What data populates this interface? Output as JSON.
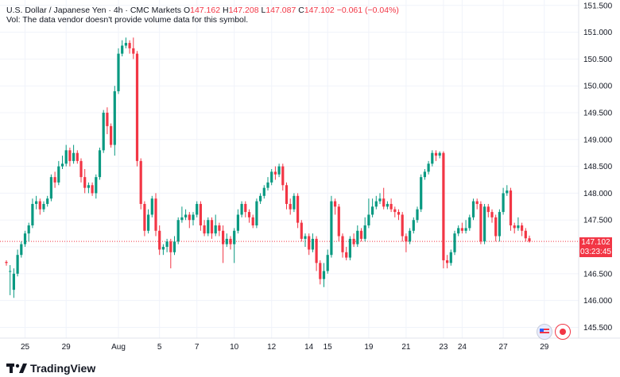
{
  "header": {
    "symbol": "U.S. Dollar / Japanese Yen · 4h · CMC Markets",
    "o_label": "O",
    "o_value": "147.162",
    "h_label": "H",
    "h_value": "147.208",
    "l_label": "L",
    "l_value": "147.087",
    "c_label": "C",
    "c_value": "147.102",
    "change": "−0.061 (−0.04%)",
    "vol_note": "Vol: The data vendor doesn't provide volume data for this symbol."
  },
  "price_tag": {
    "price": "147.102",
    "countdown": "03:23:45"
  },
  "brand": {
    "name": "TradingView"
  },
  "colors": {
    "up": "#089981",
    "down": "#f23645",
    "grid": "#f0f3fa",
    "axis_text": "#131722"
  },
  "chart_data": {
    "type": "candlestick",
    "title": "U.S. Dollar / Japanese Yen · 4h · CMC Markets",
    "ylim": [
      145.3,
      151.6
    ],
    "yticks": [
      "151.500",
      "151.000",
      "150.500",
      "150.000",
      "149.500",
      "149.000",
      "148.500",
      "148.000",
      "147.500",
      "147.000",
      "146.500",
      "146.000",
      "145.500"
    ],
    "xticks": [
      {
        "label": "25",
        "i": 5
      },
      {
        "label": "29",
        "i": 16
      },
      {
        "label": "Aug",
        "i": 30
      },
      {
        "label": "5",
        "i": 41
      },
      {
        "label": "7",
        "i": 51
      },
      {
        "label": "10",
        "i": 61
      },
      {
        "label": "12",
        "i": 71
      },
      {
        "label": "14",
        "i": 81
      },
      {
        "label": "15",
        "i": 86
      },
      {
        "label": "19",
        "i": 97
      },
      {
        "label": "21",
        "i": 107
      },
      {
        "label": "23",
        "i": 117
      },
      {
        "label": "24",
        "i": 122
      },
      {
        "label": "27",
        "i": 133
      },
      {
        "label": "29",
        "i": 144
      }
    ],
    "last_price": 147.102,
    "grid": true,
    "candles": [
      [
        146.72,
        146.7,
        146.65,
        146.75
      ],
      [
        146.55,
        146.55,
        146.1,
        146.66
      ],
      [
        146.2,
        146.5,
        146.05,
        146.6
      ],
      [
        146.5,
        146.85,
        146.45,
        146.95
      ],
      [
        146.85,
        147.05,
        146.8,
        147.1
      ],
      [
        147.05,
        147.25,
        147.0,
        147.3
      ],
      [
        147.25,
        147.4,
        147.1,
        147.45
      ],
      [
        147.4,
        147.8,
        147.35,
        147.9
      ],
      [
        147.8,
        147.85,
        147.7,
        147.95
      ],
      [
        147.85,
        147.7,
        147.6,
        147.9
      ],
      [
        147.7,
        147.8,
        147.65,
        147.85
      ],
      [
        147.8,
        147.9,
        147.75,
        147.95
      ],
      [
        147.9,
        148.3,
        147.85,
        148.35
      ],
      [
        148.3,
        148.2,
        148.1,
        148.4
      ],
      [
        148.2,
        148.5,
        148.15,
        148.6
      ],
      [
        148.5,
        148.55,
        148.45,
        148.7
      ],
      [
        148.55,
        148.8,
        148.5,
        148.9
      ],
      [
        148.8,
        148.6,
        148.5,
        148.85
      ],
      [
        148.6,
        148.75,
        148.55,
        148.9
      ],
      [
        148.75,
        148.6,
        148.55,
        148.8
      ],
      [
        148.6,
        148.3,
        148.2,
        148.65
      ],
      [
        148.3,
        148.1,
        148.0,
        148.45
      ],
      [
        148.1,
        148.15,
        148.0,
        148.2
      ],
      [
        148.15,
        148.0,
        147.95,
        148.2
      ],
      [
        148.0,
        148.3,
        147.9,
        148.35
      ],
      [
        148.3,
        148.8,
        148.25,
        148.85
      ],
      [
        148.8,
        149.5,
        148.75,
        149.55
      ],
      [
        149.5,
        149.25,
        149.1,
        149.6
      ],
      [
        149.25,
        148.9,
        148.85,
        149.3
      ],
      [
        148.9,
        149.9,
        148.7,
        150.0
      ],
      [
        149.9,
        150.6,
        149.85,
        150.7
      ],
      [
        150.6,
        150.75,
        150.55,
        150.85
      ],
      [
        150.75,
        150.8,
        150.7,
        150.9
      ],
      [
        150.8,
        150.7,
        150.6,
        150.85
      ],
      [
        150.7,
        150.6,
        150.5,
        150.9
      ],
      [
        150.6,
        148.6,
        148.5,
        150.65
      ],
      [
        148.6,
        147.8,
        147.7,
        148.65
      ],
      [
        147.8,
        147.3,
        147.2,
        147.85
      ],
      [
        147.3,
        147.6,
        147.25,
        147.7
      ],
      [
        147.6,
        147.9,
        147.55,
        147.95
      ],
      [
        147.9,
        147.3,
        147.2,
        148.0
      ],
      [
        147.3,
        146.95,
        146.85,
        147.4
      ],
      [
        146.95,
        147.0,
        146.85,
        147.05
      ],
      [
        147.0,
        147.1,
        146.9,
        147.15
      ],
      [
        147.1,
        146.9,
        146.6,
        147.15
      ],
      [
        146.9,
        147.1,
        146.85,
        147.2
      ],
      [
        147.1,
        147.5,
        147.05,
        147.55
      ],
      [
        147.5,
        147.55,
        147.45,
        147.75
      ],
      [
        147.55,
        147.6,
        147.5,
        147.7
      ],
      [
        147.6,
        147.5,
        147.35,
        147.65
      ],
      [
        147.5,
        147.6,
        147.4,
        147.65
      ],
      [
        147.6,
        147.8,
        147.55,
        147.85
      ],
      [
        147.8,
        147.4,
        147.3,
        147.85
      ],
      [
        147.4,
        147.25,
        147.2,
        147.5
      ],
      [
        147.25,
        147.5,
        147.2,
        147.55
      ],
      [
        147.5,
        147.25,
        147.15,
        147.55
      ],
      [
        147.25,
        147.4,
        147.2,
        147.6
      ],
      [
        147.4,
        147.3,
        147.2,
        147.45
      ],
      [
        147.3,
        147.05,
        146.7,
        147.4
      ],
      [
        147.05,
        147.15,
        147.0,
        147.25
      ],
      [
        147.15,
        147.05,
        146.95,
        147.2
      ],
      [
        147.05,
        147.3,
        146.7,
        147.35
      ],
      [
        147.3,
        147.6,
        147.25,
        147.7
      ],
      [
        147.6,
        147.8,
        147.55,
        147.85
      ],
      [
        147.8,
        147.65,
        147.55,
        147.85
      ],
      [
        147.65,
        147.55,
        147.45,
        147.7
      ],
      [
        147.55,
        147.4,
        147.35,
        147.6
      ],
      [
        147.4,
        147.85,
        147.35,
        147.9
      ],
      [
        147.85,
        147.95,
        147.8,
        148.0
      ],
      [
        147.95,
        148.1,
        147.9,
        148.15
      ],
      [
        148.1,
        148.2,
        148.05,
        148.3
      ],
      [
        148.2,
        148.4,
        148.15,
        148.45
      ],
      [
        148.4,
        148.35,
        148.25,
        148.5
      ],
      [
        148.35,
        148.5,
        148.3,
        148.55
      ],
      [
        148.5,
        148.15,
        148.05,
        148.55
      ],
      [
        148.15,
        147.8,
        147.7,
        148.2
      ],
      [
        147.8,
        147.7,
        147.6,
        147.9
      ],
      [
        147.7,
        147.95,
        147.65,
        148.0
      ],
      [
        147.95,
        147.45,
        147.35,
        148.0
      ],
      [
        147.45,
        147.15,
        147.1,
        147.5
      ],
      [
        147.15,
        147.2,
        147.0,
        147.25
      ],
      [
        147.2,
        146.95,
        146.85,
        147.25
      ],
      [
        146.95,
        147.15,
        146.9,
        147.25
      ],
      [
        147.15,
        146.7,
        146.55,
        147.2
      ],
      [
        146.7,
        146.4,
        146.3,
        146.75
      ],
      [
        146.4,
        146.55,
        146.25,
        146.7
      ],
      [
        146.55,
        146.85,
        146.5,
        146.95
      ],
      [
        146.85,
        147.85,
        146.8,
        147.95
      ],
      [
        147.85,
        147.75,
        147.6,
        147.9
      ],
      [
        147.75,
        147.2,
        147.1,
        147.8
      ],
      [
        147.2,
        146.9,
        146.8,
        147.25
      ],
      [
        146.9,
        146.8,
        146.75,
        147.0
      ],
      [
        146.8,
        147.15,
        146.75,
        147.2
      ],
      [
        147.15,
        147.05,
        147.0,
        147.25
      ],
      [
        147.05,
        147.3,
        147.0,
        147.4
      ],
      [
        147.3,
        147.15,
        147.1,
        147.35
      ],
      [
        147.15,
        147.4,
        147.1,
        147.55
      ],
      [
        147.4,
        147.6,
        147.35,
        147.9
      ],
      [
        147.6,
        147.75,
        147.55,
        147.9
      ],
      [
        147.75,
        147.85,
        147.7,
        147.95
      ],
      [
        147.85,
        147.9,
        147.8,
        148.0
      ],
      [
        147.9,
        147.75,
        147.7,
        148.1
      ],
      [
        147.75,
        147.8,
        147.7,
        147.85
      ],
      [
        147.8,
        147.7,
        147.65,
        147.9
      ],
      [
        147.7,
        147.65,
        147.55,
        147.75
      ],
      [
        147.65,
        147.6,
        147.5,
        147.7
      ],
      [
        147.6,
        147.2,
        147.1,
        147.65
      ],
      [
        147.2,
        147.1,
        146.9,
        147.25
      ],
      [
        147.1,
        147.3,
        147.05,
        147.35
      ],
      [
        147.3,
        147.5,
        147.25,
        147.55
      ],
      [
        147.5,
        147.7,
        147.45,
        147.75
      ],
      [
        147.7,
        148.3,
        147.65,
        148.35
      ],
      [
        148.3,
        148.4,
        148.25,
        148.45
      ],
      [
        148.4,
        148.55,
        148.35,
        148.6
      ],
      [
        148.55,
        148.75,
        148.5,
        148.8
      ],
      [
        148.75,
        148.7,
        148.6,
        148.8
      ],
      [
        148.7,
        148.75,
        148.65,
        148.78
      ],
      [
        148.75,
        146.75,
        146.6,
        148.78
      ],
      [
        146.75,
        146.7,
        146.6,
        146.85
      ],
      [
        146.7,
        146.9,
        146.65,
        146.95
      ],
      [
        146.9,
        147.25,
        146.85,
        147.3
      ],
      [
        147.25,
        147.35,
        147.2,
        147.4
      ],
      [
        147.35,
        147.3,
        147.25,
        147.45
      ],
      [
        147.3,
        147.35,
        147.25,
        147.5
      ],
      [
        147.35,
        147.55,
        147.3,
        147.6
      ],
      [
        147.55,
        147.85,
        147.5,
        147.9
      ],
      [
        147.85,
        147.8,
        147.7,
        147.9
      ],
      [
        147.8,
        147.1,
        147.05,
        147.85
      ],
      [
        147.1,
        147.75,
        147.05,
        147.8
      ],
      [
        147.75,
        147.65,
        147.55,
        147.8
      ],
      [
        147.65,
        147.55,
        147.45,
        147.7
      ],
      [
        147.55,
        147.2,
        147.1,
        147.6
      ],
      [
        147.2,
        147.65,
        147.1,
        147.7
      ],
      [
        147.65,
        148.0,
        147.6,
        148.1
      ],
      [
        148.0,
        148.05,
        147.95,
        148.15
      ],
      [
        148.05,
        147.4,
        147.3,
        148.1
      ],
      [
        147.4,
        147.35,
        147.25,
        147.45
      ],
      [
        147.35,
        147.4,
        147.3,
        147.55
      ],
      [
        147.4,
        147.3,
        147.2,
        147.45
      ],
      [
        147.3,
        147.16,
        147.1,
        147.35
      ],
      [
        147.16,
        147.1,
        147.08,
        147.21
      ]
    ]
  }
}
